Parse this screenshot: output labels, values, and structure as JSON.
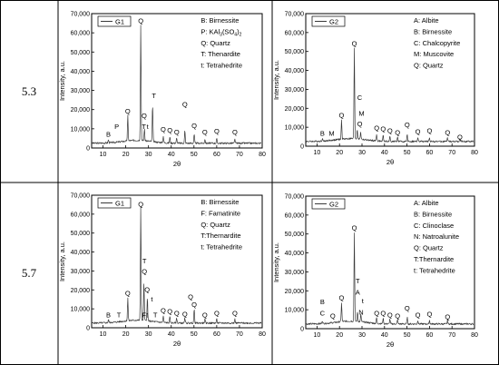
{
  "rows": [
    {
      "label": "5.3"
    },
    {
      "label": "5.7"
    }
  ],
  "chart_data": [
    {
      "type": "line",
      "xlabel": "2θ",
      "ylabel": "Intensity, a.u.",
      "xlim": [
        5,
        80
      ],
      "ylim": [
        0,
        70000
      ],
      "xticks": [
        10,
        20,
        30,
        40,
        50,
        60,
        70,
        80
      ],
      "yticks": [
        0,
        10000,
        20000,
        30000,
        40000,
        50000,
        60000,
        70000
      ],
      "ytick_labels": [
        "0",
        "10,000",
        "20,000",
        "30,000",
        "40,000",
        "50,000",
        "60,000",
        "70,000"
      ],
      "legend": {
        "name": "G1"
      },
      "key": [
        "B: Birnessite",
        "P: KAl",
        "Q: Quartz",
        "T: Thenardite",
        "t: Tetrahedrite"
      ],
      "key_formula": {
        "prefix": "P: KAl",
        "sub1": "3",
        "mid": "(SO",
        "sub2": "4",
        "suffix": ")",
        "sub3": "2"
      },
      "peaks": [
        [
          12.4,
          1500
        ],
        [
          20.9,
          13000
        ],
        [
          26.6,
          60000
        ],
        [
          28.2,
          6000
        ],
        [
          31.8,
          19000
        ],
        [
          36.5,
          3500
        ],
        [
          39.4,
          3000
        ],
        [
          42.4,
          2500
        ],
        [
          46.0,
          6500
        ],
        [
          50.1,
          4500
        ],
        [
          54.8,
          2200
        ],
        [
          60.0,
          2200
        ],
        [
          68.0,
          2000
        ]
      ],
      "annotations": [
        {
          "text": "B",
          "x": 12.4,
          "y": 6000
        },
        {
          "text": "P",
          "x": 16.0,
          "y": 10000
        },
        {
          "text": "Q",
          "x": 20.9,
          "y": 18000
        },
        {
          "text": "Q",
          "x": 26.6,
          "y": 65000
        },
        {
          "text": "Q",
          "x": 28.1,
          "y": 15500
        },
        {
          "text": "T",
          "x": 28.0,
          "y": 10000
        },
        {
          "text": "t",
          "x": 29.6,
          "y": 10000
        },
        {
          "text": "T",
          "x": 32.4,
          "y": 26000
        },
        {
          "text": "Q",
          "x": 36.5,
          "y": 8500
        },
        {
          "text": "Q",
          "x": 39.4,
          "y": 8000
        },
        {
          "text": "Q",
          "x": 42.4,
          "y": 7000
        },
        {
          "text": "Q",
          "x": 46.0,
          "y": 21500
        },
        {
          "text": "Q",
          "x": 50.1,
          "y": 10500
        },
        {
          "text": "Q",
          "x": 54.8,
          "y": 7000
        },
        {
          "text": "Q",
          "x": 60.0,
          "y": 7500
        },
        {
          "text": "Q",
          "x": 68.0,
          "y": 7000
        }
      ]
    },
    {
      "type": "line",
      "xlabel": "2θ",
      "ylabel": "Intensity, a.u.",
      "xlim": [
        5,
        80
      ],
      "ylim": [
        0,
        70000
      ],
      "xticks": [
        10,
        20,
        30,
        40,
        50,
        60,
        70,
        80
      ],
      "yticks": [
        0,
        10000,
        20000,
        30000,
        40000,
        50000,
        60000,
        70000
      ],
      "ytick_labels": [
        "0",
        "10,000",
        "20,000",
        "30,000",
        "40,000",
        "50,000",
        "60,000",
        "70,000"
      ],
      "legend": {
        "name": "G2"
      },
      "key": [
        "A: Albite",
        "B: Birnessite",
        "C: Chalcopyrite",
        "M: Muscovite",
        "Q: Quartz"
      ],
      "peaks": [
        [
          12.4,
          1500
        ],
        [
          20.9,
          10000
        ],
        [
          26.6,
          48000
        ],
        [
          27.9,
          5000
        ],
        [
          29.4,
          4000
        ],
        [
          36.5,
          3500
        ],
        [
          39.4,
          3000
        ],
        [
          42.4,
          2500
        ],
        [
          45.8,
          2200
        ],
        [
          50.1,
          3500
        ],
        [
          54.8,
          2000
        ],
        [
          60.0,
          2000
        ],
        [
          68.0,
          1800
        ],
        [
          73.5,
          1500
        ]
      ],
      "annotations": [
        {
          "text": "B",
          "x": 12.4,
          "y": 5500
        },
        {
          "text": "M",
          "x": 16.5,
          "y": 5500
        },
        {
          "text": "Q",
          "x": 20.9,
          "y": 15000
        },
        {
          "text": "Q",
          "x": 26.6,
          "y": 53000
        },
        {
          "text": "C",
          "x": 29.0,
          "y": 24500
        },
        {
          "text": "M",
          "x": 29.8,
          "y": 16000
        },
        {
          "text": "Q",
          "x": 29.0,
          "y": 10500
        },
        {
          "text": "Q",
          "x": 36.5,
          "y": 8500
        },
        {
          "text": "Q",
          "x": 39.4,
          "y": 8000
        },
        {
          "text": "Q",
          "x": 42.4,
          "y": 7000
        },
        {
          "text": "Q",
          "x": 45.8,
          "y": 6000
        },
        {
          "text": "Q",
          "x": 50.1,
          "y": 10000
        },
        {
          "text": "Q",
          "x": 54.8,
          "y": 6500
        },
        {
          "text": "Q",
          "x": 60.0,
          "y": 7000
        },
        {
          "text": "Q",
          "x": 68.0,
          "y": 6000
        },
        {
          "text": "Q",
          "x": 73.5,
          "y": 3500
        }
      ]
    },
    {
      "type": "line",
      "xlabel": "2θ",
      "ylabel": "Intensity, a.u.",
      "xlim": [
        5,
        80
      ],
      "ylim": [
        0,
        70000
      ],
      "xticks": [
        10,
        20,
        30,
        40,
        50,
        60,
        70,
        80
      ],
      "yticks": [
        0,
        10000,
        20000,
        30000,
        40000,
        50000,
        60000,
        70000
      ],
      "ytick_labels": [
        "0",
        "10,000",
        "20,000",
        "30,000",
        "40,000",
        "50,000",
        "60,000",
        "70,000"
      ],
      "legend": {
        "name": "G1"
      },
      "key": [
        "B: Birnessite",
        "F: Famatinite",
        "Q: Quartz",
        "T:Thernardite",
        "t: Tetrahedrite"
      ],
      "peaks": [
        [
          12.4,
          1500
        ],
        [
          20.9,
          12000
        ],
        [
          26.6,
          60000
        ],
        [
          28.0,
          20000
        ],
        [
          29.5,
          12000
        ],
        [
          36.5,
          3500
        ],
        [
          39.4,
          3000
        ],
        [
          42.4,
          2500
        ],
        [
          46.0,
          2500
        ],
        [
          50.1,
          7000
        ],
        [
          54.8,
          2000
        ],
        [
          60.0,
          2000
        ],
        [
          68.0,
          2000
        ]
      ],
      "annotations": [
        {
          "text": "B",
          "x": 12.4,
          "y": 5500
        },
        {
          "text": "T",
          "x": 17.0,
          "y": 5500
        },
        {
          "text": "Q",
          "x": 20.9,
          "y": 17000
        },
        {
          "text": "Q",
          "x": 26.6,
          "y": 64000
        },
        {
          "text": "T",
          "x": 28.2,
          "y": 34000
        },
        {
          "text": "Q",
          "x": 28.2,
          "y": 28500
        },
        {
          "text": "Q",
          "x": 29.4,
          "y": 19000
        },
        {
          "text": "t",
          "x": 31.5,
          "y": 14000
        },
        {
          "text": "F",
          "x": 28.0,
          "y": 5500
        },
        {
          "text": "t",
          "x": 29.4,
          "y": 5500
        },
        {
          "text": "T",
          "x": 33.0,
          "y": 5500
        },
        {
          "text": "Q",
          "x": 36.5,
          "y": 8000
        },
        {
          "text": "Q",
          "x": 39.4,
          "y": 7500
        },
        {
          "text": "Q",
          "x": 42.4,
          "y": 6500
        },
        {
          "text": "Q",
          "x": 46.0,
          "y": 6000
        },
        {
          "text": "Q",
          "x": 48.5,
          "y": 15000
        },
        {
          "text": "Q",
          "x": 50.1,
          "y": 11000
        },
        {
          "text": "Q",
          "x": 54.8,
          "y": 5500
        },
        {
          "text": "Q",
          "x": 60.0,
          "y": 6500
        },
        {
          "text": "Q",
          "x": 68.0,
          "y": 6500
        }
      ]
    },
    {
      "type": "line",
      "xlabel": "2θ",
      "ylabel": "Intensity, a.u.",
      "xlim": [
        5,
        80
      ],
      "ylim": [
        0,
        70000
      ],
      "xticks": [
        10,
        20,
        30,
        40,
        50,
        60,
        70,
        80
      ],
      "yticks": [
        0,
        10000,
        20000,
        30000,
        40000,
        50000,
        60000,
        70000
      ],
      "ytick_labels": [
        "0",
        "10,000",
        "20,000",
        "30,000",
        "40,000",
        "50,000",
        "60,000",
        "70,000"
      ],
      "legend": {
        "name": "G2"
      },
      "key": [
        "A: Albite",
        "B: Birnessite",
        "C: Clinoclase",
        "N: Natroalunite",
        "Q: Quartz",
        "T:Thernardite",
        "t: Tetrahedrite"
      ],
      "peaks": [
        [
          12.4,
          1500
        ],
        [
          20.9,
          10000
        ],
        [
          26.6,
          47000
        ],
        [
          28.0,
          5000
        ],
        [
          29.5,
          4000
        ],
        [
          36.5,
          3000
        ],
        [
          39.4,
          3000
        ],
        [
          42.4,
          2500
        ],
        [
          45.8,
          2200
        ],
        [
          50.1,
          3500
        ],
        [
          54.8,
          2000
        ],
        [
          60.0,
          2000
        ],
        [
          68.0,
          1800
        ]
      ],
      "annotations": [
        {
          "text": "B",
          "x": 12.4,
          "y": 13000
        },
        {
          "text": "C",
          "x": 12.4,
          "y": 7000
        },
        {
          "text": "Q",
          "x": 17.0,
          "y": 5500
        },
        {
          "text": "Q",
          "x": 20.9,
          "y": 15000
        },
        {
          "text": "Q",
          "x": 26.6,
          "y": 52000
        },
        {
          "text": "T",
          "x": 28.1,
          "y": 24000
        },
        {
          "text": "A",
          "x": 28.1,
          "y": 18000
        },
        {
          "text": "t",
          "x": 30.3,
          "y": 13500
        },
        {
          "text": "N",
          "x": 29.6,
          "y": 7500
        },
        {
          "text": "Q",
          "x": 36.5,
          "y": 7000
        },
        {
          "text": "Q",
          "x": 39.4,
          "y": 7000
        },
        {
          "text": "Q",
          "x": 42.4,
          "y": 6000
        },
        {
          "text": "Q",
          "x": 45.8,
          "y": 5500
        },
        {
          "text": "Q",
          "x": 50.1,
          "y": 9500
        },
        {
          "text": "Q",
          "x": 54.8,
          "y": 6000
        },
        {
          "text": "Q",
          "x": 60.0,
          "y": 6500
        },
        {
          "text": "Q",
          "x": 68.0,
          "y": 5000
        }
      ]
    }
  ]
}
